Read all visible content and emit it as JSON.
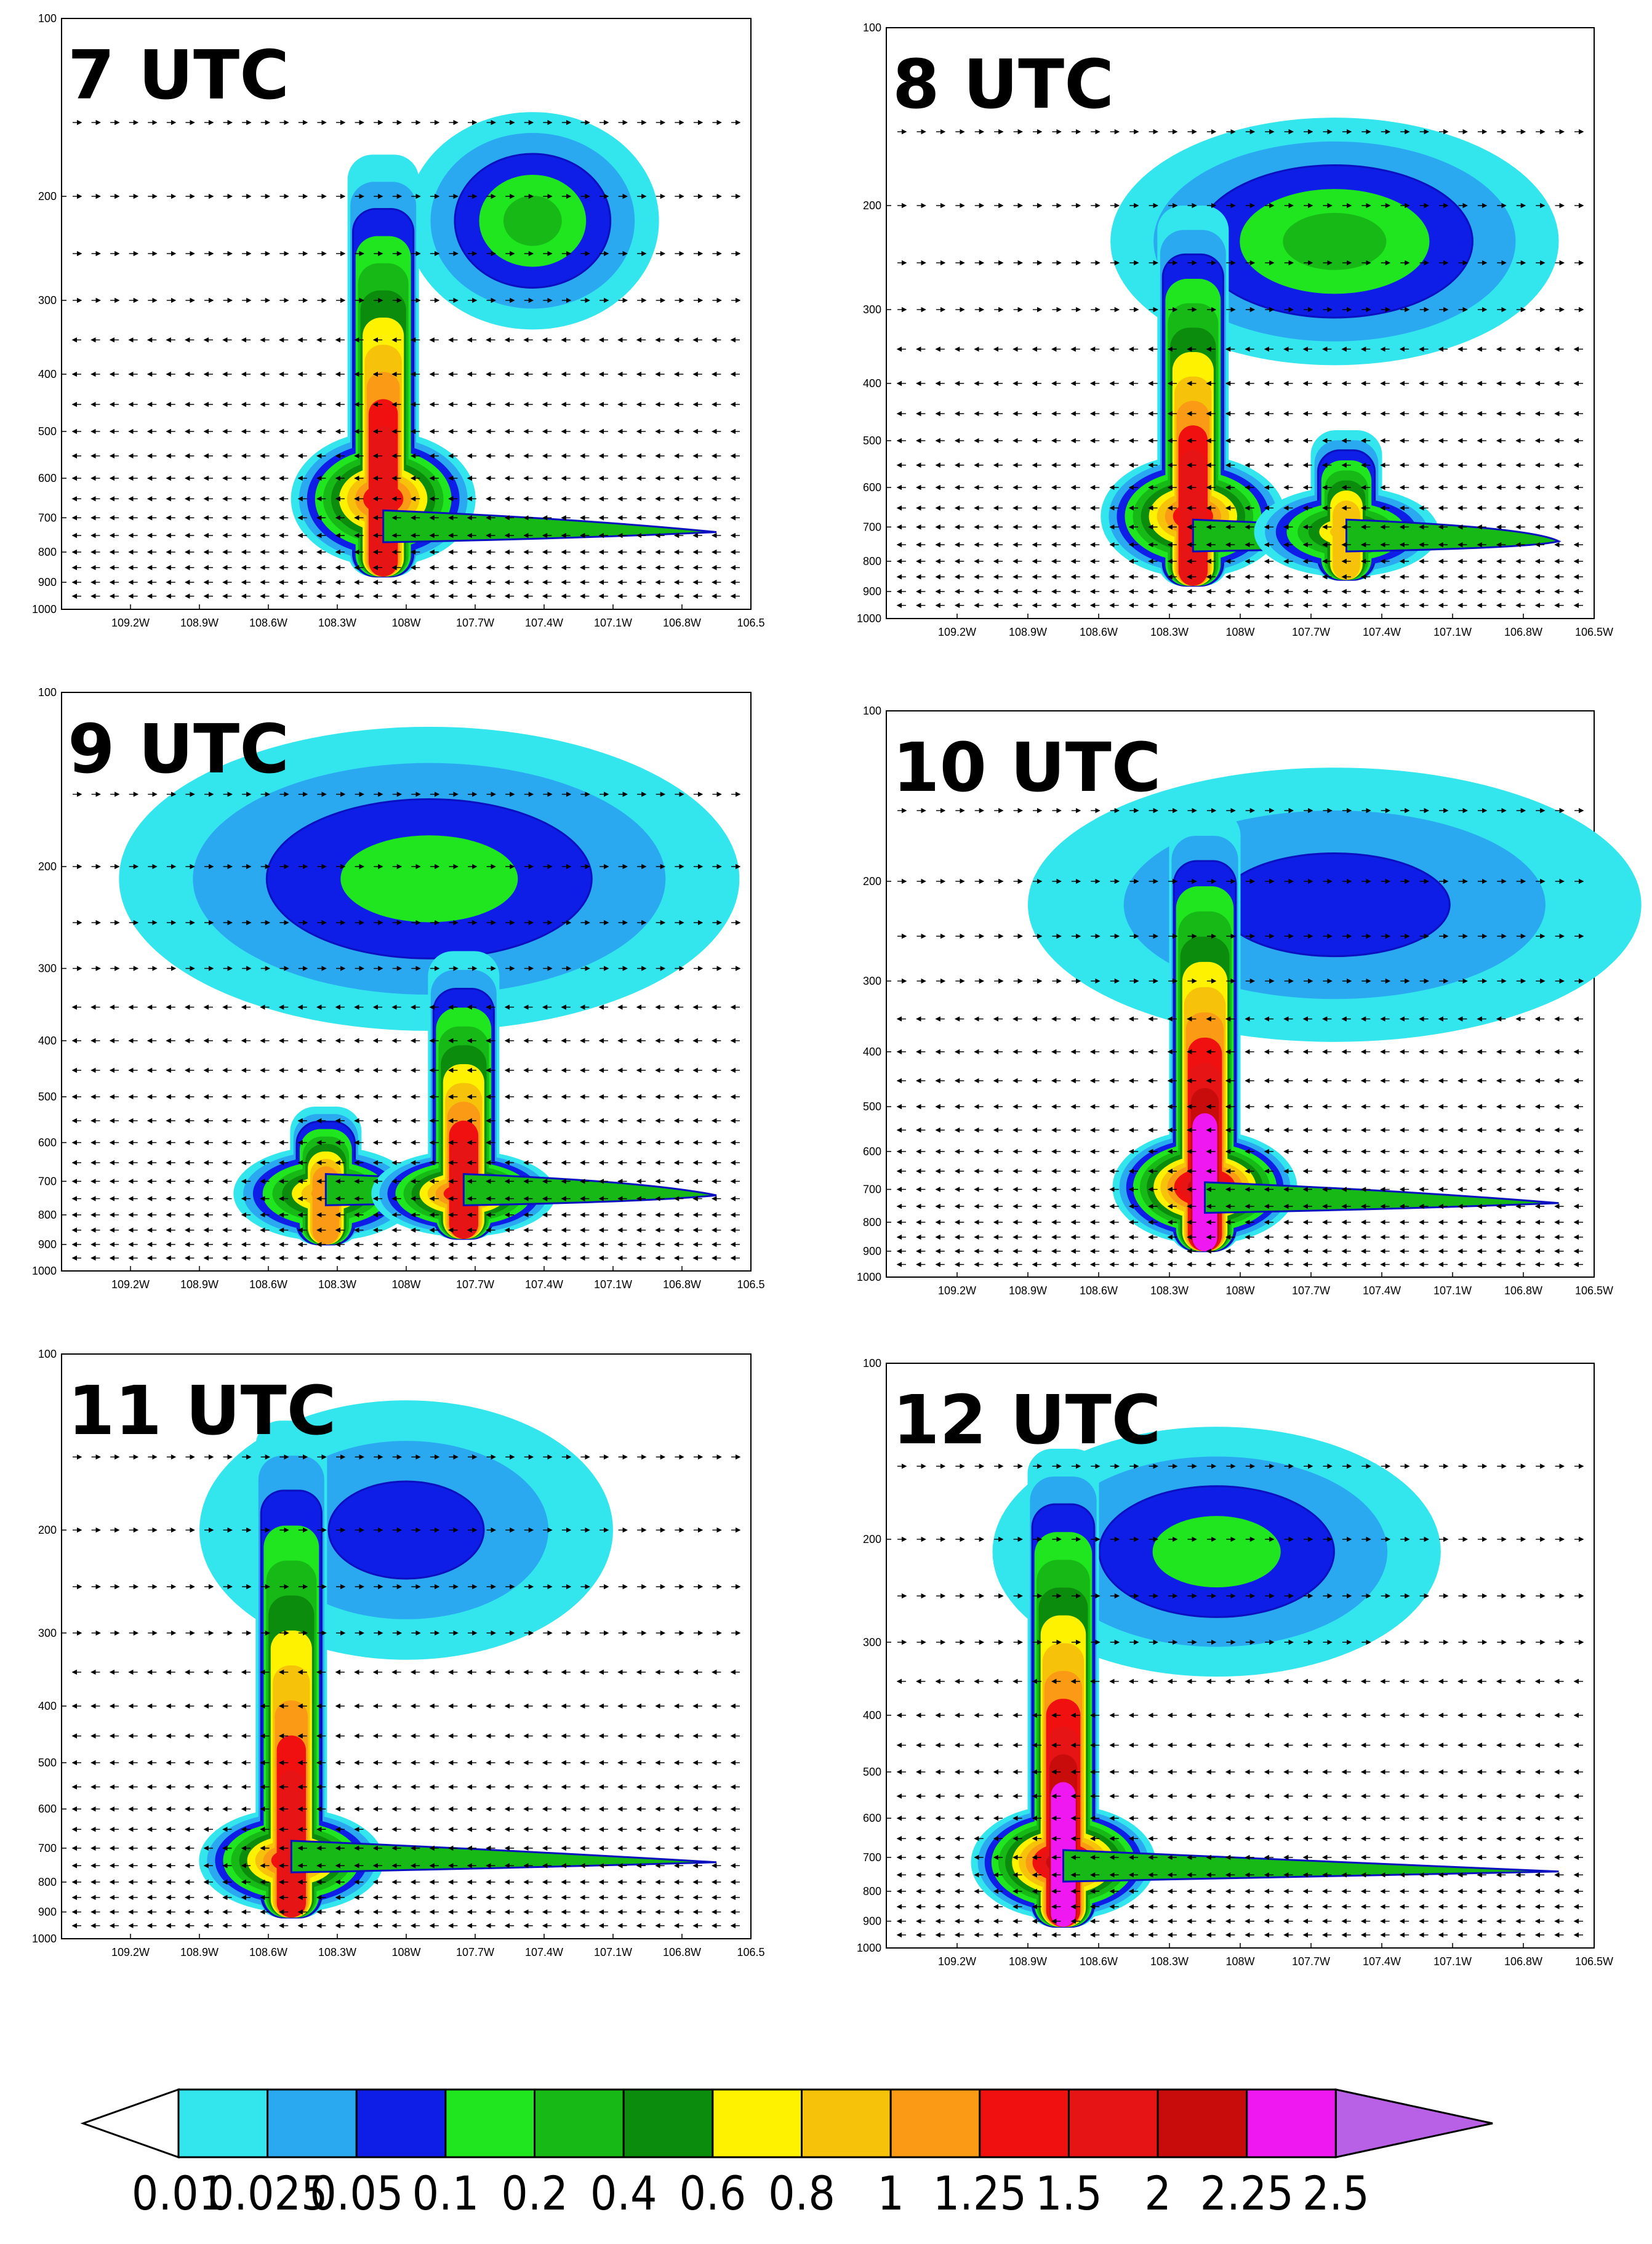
{
  "figure": {
    "colorbar": {
      "labels": [
        "0.01",
        "0.025",
        "0.05",
        "0.1",
        "0.2",
        "0.4",
        "0.6",
        "0.8",
        "1",
        "1.25",
        "1.5",
        "2",
        "2.25",
        "2.5"
      ],
      "colors": [
        "#33e6ee",
        "#2ba9f0",
        "#0f1ee6",
        "#1fe61f",
        "#17b917",
        "#0c8c0c",
        "#fff200",
        "#f6c20a",
        "#fb9a14",
        "#f01010",
        "#e61414",
        "#c80c0c",
        "#f018f0",
        "#b860e6"
      ],
      "under_color": "#ffffff",
      "over_color": "#b860e6"
    }
  },
  "chart_data": [
    {
      "type": "heatmap",
      "title": "7 UTC",
      "x_ticks": [
        "109.2W",
        "108.9W",
        "108.6W",
        "108.3W",
        "108W",
        "107.7W",
        "107.4W",
        "107.1W",
        "106.8W",
        "106.5"
      ],
      "y_ticks": [
        "100",
        "200",
        "300",
        "400",
        "500",
        "600",
        "700",
        "800",
        "900",
        "1000"
      ],
      "xlim": [
        -109.5,
        -106.5
      ],
      "ylim": [
        1000,
        100
      ],
      "features": [
        {
          "kind": "anvil",
          "lon": -107.45,
          "p": 220,
          "lon_w": 0.55,
          "p_w": 60,
          "max_level": 0.2
        },
        {
          "kind": "column",
          "lon": -108.1,
          "p_top": 170,
          "p_bot": 880,
          "max_level": 1.5,
          "core_p": 620
        }
      ]
    },
    {
      "type": "heatmap",
      "title": "8 UTC",
      "x_ticks": [
        "109.2W",
        "108.9W",
        "108.6W",
        "108.3W",
        "108W",
        "107.7W",
        "107.4W",
        "107.1W",
        "106.8W",
        "106.5W"
      ],
      "y_ticks": [
        "100",
        "200",
        "300",
        "400",
        "500",
        "600",
        "700",
        "800",
        "900",
        "1000"
      ],
      "xlim": [
        -109.5,
        -106.5
      ],
      "ylim": [
        1000,
        100
      ],
      "features": [
        {
          "kind": "anvil",
          "lon": -107.6,
          "p": 230,
          "lon_w": 0.95,
          "p_w": 75,
          "max_level": 0.2
        },
        {
          "kind": "column",
          "lon": -108.2,
          "p_top": 200,
          "p_bot": 880,
          "max_level": 1.5,
          "core_p": 640
        },
        {
          "kind": "column",
          "lon": -107.55,
          "p_top": 480,
          "p_bot": 860,
          "max_level": 0.8,
          "core_p": 680
        }
      ]
    },
    {
      "type": "heatmap",
      "title": "9 UTC",
      "x_ticks": [
        "109.2W",
        "108.9W",
        "108.6W",
        "108.3W",
        "108W",
        "107.7W",
        "107.4W",
        "107.1W",
        "106.8W",
        "106.5"
      ],
      "y_ticks": [
        "100",
        "200",
        "300",
        "400",
        "500",
        "600",
        "700",
        "800",
        "900",
        "1000"
      ],
      "xlim": [
        -109.5,
        -106.5
      ],
      "ylim": [
        1000,
        100
      ],
      "features": [
        {
          "kind": "anvil",
          "lon": -107.9,
          "p": 210,
          "lon_w": 1.35,
          "p_w": 90,
          "max_level": 0.1
        },
        {
          "kind": "column",
          "lon": -108.35,
          "p_top": 520,
          "p_bot": 900,
          "max_level": 1,
          "core_p": 700
        },
        {
          "kind": "column",
          "lon": -107.75,
          "p_top": 280,
          "p_bot": 880,
          "max_level": 1.5,
          "core_p": 700
        }
      ]
    },
    {
      "type": "heatmap",
      "title": "10 UTC",
      "x_ticks": [
        "109.2W",
        "108.9W",
        "108.6W",
        "108.3W",
        "108W",
        "107.7W",
        "107.4W",
        "107.1W",
        "106.8W",
        "106.5W"
      ],
      "y_ticks": [
        "100",
        "200",
        "300",
        "400",
        "500",
        "600",
        "700",
        "800",
        "900",
        "1000"
      ],
      "xlim": [
        -109.5,
        -106.5
      ],
      "ylim": [
        1000,
        100
      ],
      "features": [
        {
          "kind": "anvil",
          "lon": -107.6,
          "p": 220,
          "lon_w": 1.3,
          "p_w": 85,
          "max_level": 0.05
        },
        {
          "kind": "column",
          "lon": -108.15,
          "p_top": 150,
          "p_bot": 900,
          "max_level": 2.25,
          "core_p": 660
        }
      ]
    },
    {
      "type": "heatmap",
      "title": "11 UTC",
      "x_ticks": [
        "109.2W",
        "108.9W",
        "108.6W",
        "108.3W",
        "108W",
        "107.7W",
        "107.4W",
        "107.1W",
        "106.8W",
        "106.5"
      ],
      "y_ticks": [
        "100",
        "200",
        "300",
        "400",
        "500",
        "600",
        "700",
        "800",
        "900",
        "1000"
      ],
      "xlim": [
        -109.5,
        -106.5
      ],
      "ylim": [
        1000,
        100
      ],
      "features": [
        {
          "kind": "anvil",
          "lon": -108.0,
          "p": 200,
          "lon_w": 0.9,
          "p_w": 70,
          "max_level": 0.05
        },
        {
          "kind": "column",
          "lon": -108.5,
          "p_top": 130,
          "p_bot": 920,
          "max_level": 1.5,
          "core_p": 700
        }
      ]
    },
    {
      "type": "heatmap",
      "title": "12 UTC",
      "x_ticks": [
        "109.2W",
        "108.9W",
        "108.6W",
        "108.3W",
        "108W",
        "107.7W",
        "107.4W",
        "107.1W",
        "106.8W",
        "106.5W"
      ],
      "y_ticks": [
        "100",
        "200",
        "300",
        "400",
        "500",
        "600",
        "700",
        "800",
        "900",
        "1000"
      ],
      "xlim": [
        -109.5,
        -106.5
      ],
      "ylim": [
        1000,
        100
      ],
      "features": [
        {
          "kind": "anvil",
          "lon": -108.1,
          "p": 210,
          "lon_w": 0.95,
          "p_w": 70,
          "max_level": 0.1
        },
        {
          "kind": "column",
          "lon": -108.75,
          "p_top": 140,
          "p_bot": 920,
          "max_level": 2.25,
          "core_p": 680
        }
      ]
    }
  ]
}
